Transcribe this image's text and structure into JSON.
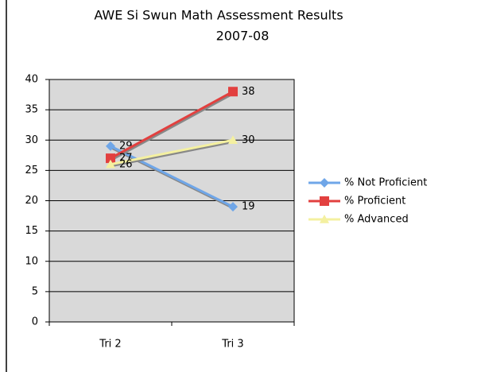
{
  "chart_data": {
    "type": "line",
    "title": "AWE Si Swun Math Assessment Results",
    "subtitle": "2007-08",
    "categories": [
      "Tri 2",
      "Tri 3"
    ],
    "series": [
      {
        "name": "% Not Proficient",
        "color": "#6fa6e8",
        "marker": "diamond",
        "values": [
          29,
          19
        ]
      },
      {
        "name": "% Proficient",
        "color": "#e2403f",
        "marker": "square",
        "values": [
          27,
          38
        ]
      },
      {
        "name": "% Advanced",
        "color": "#f4f0a0",
        "marker": "triangle",
        "values": [
          26,
          30
        ]
      }
    ],
    "ylim": [
      0,
      40
    ],
    "yticks": [
      0,
      5,
      10,
      15,
      20,
      25,
      30,
      35,
      40
    ],
    "grid": true,
    "legend": "right"
  }
}
